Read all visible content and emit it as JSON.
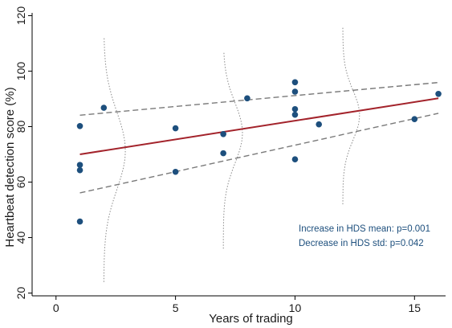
{
  "chart_data": {
    "type": "scatter",
    "xlabel": "Years of trading",
    "ylabel": "Heartbeat detection score (%)",
    "xlim": [
      -1,
      16.3
    ],
    "ylim": [
      19,
      121
    ],
    "xticks": [
      0,
      5,
      10,
      15
    ],
    "yticks": [
      20,
      40,
      60,
      80,
      100,
      120
    ],
    "grid": false,
    "points": [
      {
        "x": 1,
        "y": 80.2
      },
      {
        "x": 1,
        "y": 66.2
      },
      {
        "x": 1,
        "y": 64.3
      },
      {
        "x": 1,
        "y": 45.8
      },
      {
        "x": 2,
        "y": 86.8
      },
      {
        "x": 5,
        "y": 79.4
      },
      {
        "x": 5,
        "y": 63.7
      },
      {
        "x": 7,
        "y": 77.3
      },
      {
        "x": 7,
        "y": 70.4
      },
      {
        "x": 8,
        "y": 90.2
      },
      {
        "x": 10,
        "y": 96.0
      },
      {
        "x": 10,
        "y": 92.6
      },
      {
        "x": 10,
        "y": 86.3
      },
      {
        "x": 10,
        "y": 84.3
      },
      {
        "x": 10,
        "y": 68.2
      },
      {
        "x": 11,
        "y": 80.8
      },
      {
        "x": 15,
        "y": 82.7
      },
      {
        "x": 16,
        "y": 91.8
      }
    ],
    "fit_line": {
      "x": [
        1,
        16
      ],
      "y": [
        70,
        90.2
      ]
    },
    "upper_band": {
      "x": [
        1,
        16
      ],
      "y": [
        84.1,
        95.9
      ]
    },
    "lower_band": {
      "x": [
        1,
        16
      ],
      "y": [
        56.1,
        84.8
      ]
    },
    "distributions": [
      {
        "center_x": 2,
        "peak_x": 2.9,
        "y_range": [
          24,
          112
        ],
        "mean_y": 71.3,
        "sd_y": 14
      },
      {
        "center_x": 7,
        "peak_x": 7.8,
        "y_range": [
          36,
          107
        ],
        "mean_y": 77.7,
        "sd_y": 11
      },
      {
        "center_x": 12,
        "peak_x": 12.7,
        "y_range": [
          52,
          116
        ],
        "mean_y": 84.1,
        "sd_y": 9
      }
    ],
    "annotations": [
      "Increase in HDS mean: p=0.001",
      "Decrease in HDS std:  p=0.042"
    ],
    "colors": {
      "points": "#1d4f7d",
      "fit_line": "#a3232b",
      "bands": "#7a7a7a",
      "distributions": "#8a8a8a",
      "annotation_text": "#1d4f7d"
    }
  }
}
